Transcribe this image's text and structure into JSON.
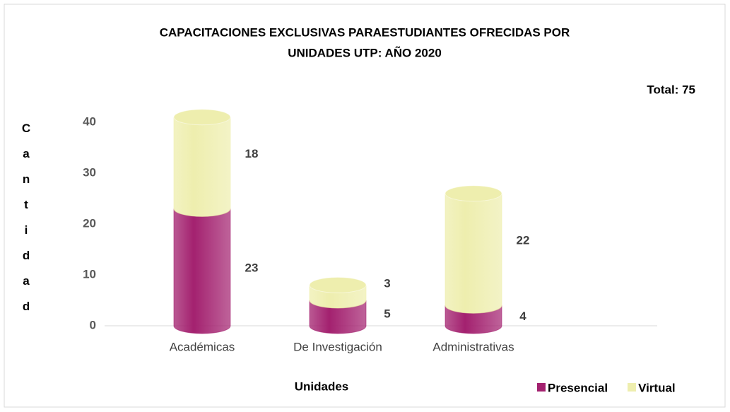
{
  "chart_data": {
    "type": "bar",
    "stacked": true,
    "title": [
      "CAPACITACIONES EXCLUSIVAS PARAESTUDIANTES OFRECIDAS POR",
      "UNIDADES UTP: AÑO 2020"
    ],
    "annotation": "Total: 75",
    "y_label": "Cantidad",
    "x_label": "Unidades",
    "categories": [
      "Académicas",
      "De Investigación",
      "Administrativas"
    ],
    "series": [
      {
        "name": "Presencial",
        "color": "#a3216f",
        "values": [
          23,
          5,
          4
        ]
      },
      {
        "name": "Virtual",
        "color": "#eeeeae",
        "values": [
          18,
          3,
          22
        ]
      }
    ],
    "ylim": [
      0,
      45
    ],
    "yticks": [
      0,
      10,
      20,
      30,
      40
    ],
    "legend": "bottom-right"
  }
}
